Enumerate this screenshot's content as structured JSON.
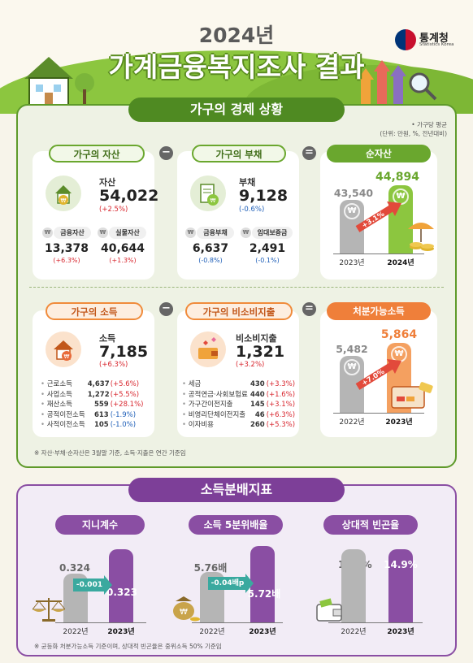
{
  "header": {
    "year": "2024년",
    "title": "가계금융복지조사 결과",
    "logo_name": "통계청",
    "logo_sub": "Statistics Korea"
  },
  "section1": {
    "title": "가구의 경제 상황",
    "unit_line1": "• 가구당 평균",
    "unit_line2": "(단위: 만원, %, 전년대비)",
    "op_minus": "−",
    "op_equals": "=",
    "assets": {
      "pill": "가구의 자산",
      "label": "자산",
      "value": "54,022",
      "change": "(+2.5%)",
      "sub1_label": "금융자산",
      "sub1_value": "13,378",
      "sub1_change": "(+6.3%)",
      "sub2_label": "실물자산",
      "sub2_value": "40,644",
      "sub2_change": "(+1.3%)"
    },
    "debt": {
      "pill": "가구의 부채",
      "label": "부채",
      "value": "9,128",
      "change": "(-0.6%)",
      "sub1_label": "금융부채",
      "sub1_value": "6,637",
      "sub1_change": "(-0.8%)",
      "sub2_label": "임대보증금",
      "sub2_value": "2,491",
      "sub2_change": "(-0.1%)"
    },
    "net_assets": {
      "pill": "순자산",
      "prev_value": "43,540",
      "curr_value": "44,894",
      "change": "+3.1%",
      "prev_year": "2023년",
      "curr_year": "2024년"
    },
    "income": {
      "pill": "가구의 소득",
      "label": "소득",
      "value": "7,185",
      "change": "(+6.3%)",
      "items": [
        {
          "name": "근로소득",
          "value": "4,637",
          "change": "(+5.6%)"
        },
        {
          "name": "사업소득",
          "value": "1,272",
          "change": "(+5.5%)"
        },
        {
          "name": "재산소득",
          "value": "559",
          "change": "(+28.1%)"
        },
        {
          "name": "공적이전소득",
          "value": "613",
          "change": "(-1.9%)"
        },
        {
          "name": "사적이전소득",
          "value": "105",
          "change": "(-1.0%)"
        }
      ]
    },
    "nonconsumption": {
      "pill": "가구의 비소비지출",
      "label": "비소비지출",
      "value": "1,321",
      "change": "(+3.2%)",
      "items": [
        {
          "name": "세금",
          "value": "430",
          "change": "(+3.3%)"
        },
        {
          "name": "공적연금·사회보험료",
          "value": "440",
          "change": "(+1.6%)"
        },
        {
          "name": "가구간이전지출",
          "value": "145",
          "change": "(+3.1%)"
        },
        {
          "name": "비영리단체이전지출",
          "value": "46",
          "change": "(+6.3%)"
        },
        {
          "name": "이자비용",
          "value": "260",
          "change": "(+5.3%)"
        }
      ]
    },
    "disposable": {
      "pill": "처분가능소득",
      "prev_value": "5,482",
      "curr_value": "5,864",
      "change": "+7.0%",
      "prev_year": "2022년",
      "curr_year": "2023년"
    },
    "note": "※ 자산·부채·순자산은 3월말 기준, 소득·지출은 연간 기준임"
  },
  "section2": {
    "title": "소득분배지표",
    "gini": {
      "pill": "지니계수",
      "prev_value": "0.324",
      "curr_value": "0.323",
      "change": "-0.001",
      "prev_year": "2022년",
      "curr_year": "2023년"
    },
    "quintile": {
      "pill": "소득 5분위배율",
      "prev_value": "5.76배",
      "curr_value": "5.72배",
      "change": "-0.04배p",
      "prev_year": "2022년",
      "curr_year": "2023년"
    },
    "poverty": {
      "pill": "상대적 빈곤율",
      "prev_value": "14.9%",
      "curr_value": "14.9%",
      "prev_year": "2022년",
      "curr_year": "2023년"
    },
    "note": "※ 균등화 처분가능소득 기준이며, 상대적 빈곤율은 중위소득 50% 기준임"
  },
  "colors": {
    "green": "#6aa72e",
    "orange": "#ef7f3a",
    "purple": "#8a4ea3",
    "gray_bar": "#b5b5b5",
    "increase_red": "#d8262e",
    "decrease_blue": "#1f5fb8"
  },
  "icons": [
    "house-coin-icon",
    "document-coin-icon",
    "house-heart-icon",
    "wallet-hearts-icon",
    "umbrella-coins-icon",
    "scales-icon",
    "money-bag-icon",
    "wallet-icon",
    "magnifier-icon"
  ]
}
